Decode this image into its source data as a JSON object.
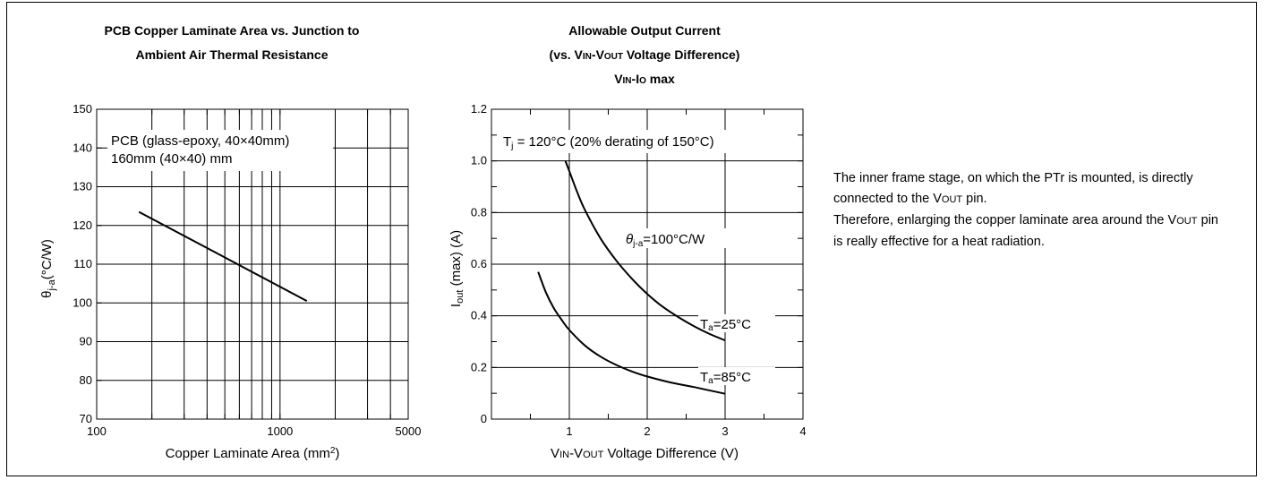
{
  "chart_data": [
    {
      "type": "line",
      "title_lines": [
        "PCB Copper Laminate Area vs. Junction to",
        "Ambient Air Thermal Resistance"
      ],
      "xlabel": "Copper Laminate Area (mm",
      "xlabel_sup": "2",
      "xlabel_end": ")",
      "ylabel_main": "θ",
      "ylabel_sub": "j-a",
      "ylabel_end": "(°C/W)",
      "xscale": "log",
      "xlim": [
        100,
        5000
      ],
      "ylim": [
        70,
        150
      ],
      "grid": true,
      "xtick_labels": [
        {
          "value": 100,
          "label": "100"
        },
        {
          "value": 1000,
          "label": "1000"
        },
        {
          "value": 5000,
          "label": "5000"
        }
      ],
      "ytick_labels": [
        "70",
        "80",
        "90",
        "100",
        "110",
        "120",
        "130",
        "140",
        "150"
      ],
      "annotations": [
        "PCB (glass-epoxy, 40×40mm)",
        "160mm (40×40) mm"
      ],
      "series": [
        {
          "x": [
            170,
            1400
          ],
          "y": [
            123.5,
            100.5
          ]
        }
      ]
    },
    {
      "type": "line",
      "title_lines": [
        "Allowable Output Current"
      ],
      "title_line2": {
        "a": "(vs. V",
        "a_small": "IN",
        "b": "-V",
        "b_small": "OUT",
        "c": " Voltage Difference)"
      },
      "title_line3": {
        "a": "V",
        "a_small": "IN",
        "b": "-I",
        "b_small": "O",
        "c": " max"
      },
      "xlabel": {
        "a": "V",
        "a_small": "IN",
        "b": "-V",
        "b_small": "OUT",
        "c": " Voltage Difference (V)"
      },
      "ylabel": {
        "a": "I",
        "a_small": "out",
        "b": " (max) (A)"
      },
      "xlim": [
        0,
        4
      ],
      "ylim": [
        0,
        1.2
      ],
      "grid": true,
      "xtick_labels": [
        "1",
        "2",
        "3",
        "4"
      ],
      "ytick_labels": [
        "0",
        "0.2",
        "0.4",
        "0.6",
        "0.8",
        "1.0",
        "1.2"
      ],
      "condition": {
        "a": "T",
        "a_sub": "j",
        "b": " = 120°C (20% derating of 150°C)"
      },
      "theta_label": {
        "a": "θ",
        "a_sub": "j-a",
        "b": "=100°C/W"
      },
      "series": [
        {
          "name": "Ta=25°C",
          "label_a": "T",
          "label_sub": "a",
          "label_b": "=25°C",
          "x": [
            0.95,
            1.0,
            1.1,
            1.2,
            1.4,
            1.6,
            1.8,
            2.0,
            2.2,
            2.4,
            2.6,
            2.8,
            3.0
          ],
          "y": [
            1.0,
            0.96,
            0.88,
            0.81,
            0.7,
            0.615,
            0.545,
            0.485,
            0.435,
            0.395,
            0.36,
            0.33,
            0.305
          ]
        },
        {
          "name": "Ta=85°C",
          "label_a": "T",
          "label_sub": "a",
          "label_b": "=85°C",
          "x": [
            0.6,
            0.7,
            0.8,
            0.9,
            1.0,
            1.2,
            1.4,
            1.6,
            1.8,
            2.0,
            2.3,
            2.6,
            3.0
          ],
          "y": [
            0.57,
            0.49,
            0.43,
            0.385,
            0.345,
            0.285,
            0.242,
            0.21,
            0.185,
            0.165,
            0.142,
            0.124,
            0.098
          ]
        }
      ]
    }
  ],
  "description": {
    "p1_a": "The inner frame stage, on which the PTr is mounted, is directly connected to the V",
    "p1_small": "OUT",
    "p1_b": " pin.",
    "p2_a": "Therefore, enlarging the copper laminate area around the V",
    "p2_small": "OUT",
    "p2_b": " pin is really effective for a heat radiation."
  }
}
